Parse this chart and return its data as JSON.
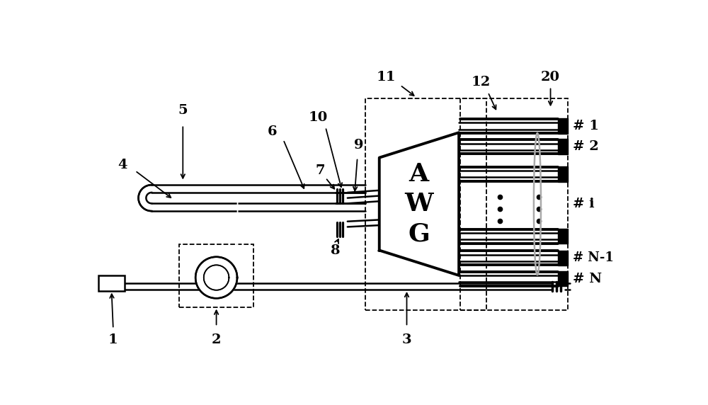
{
  "bg_color": "#ffffff",
  "line_color": "#000000",
  "fig_width": 10.0,
  "fig_height": 5.72,
  "dpi": 100,
  "xlim": [
    0,
    10
  ],
  "ylim": [
    0,
    5.72
  ],
  "font_size": 14,
  "font_family": "DejaVu Serif",
  "lw_main": 1.8,
  "lw_thick": 2.8,
  "lw_thin": 1.2
}
